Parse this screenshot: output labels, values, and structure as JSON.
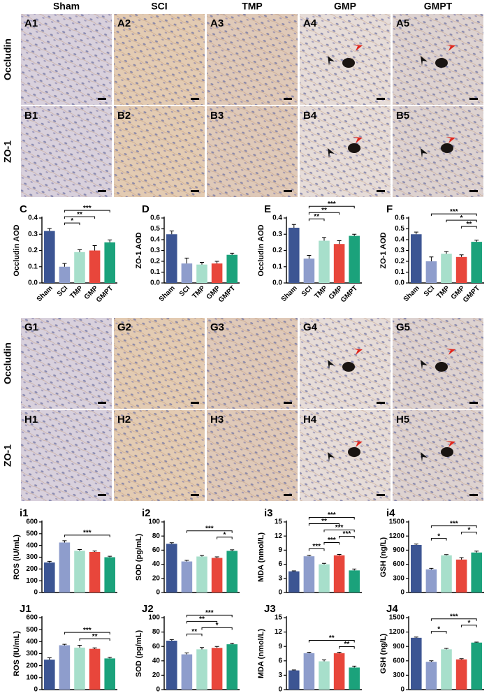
{
  "micrographs": {
    "column_headers": [
      "Sham",
      "SCI",
      "TMP",
      "GMP",
      "GMPT"
    ],
    "row_labels": [
      "Occludin",
      "ZO-1",
      "Occludin",
      "ZO-1"
    ],
    "rows": [
      [
        "A1",
        "A2",
        "A3",
        "A4",
        "A5"
      ],
      [
        "B1",
        "B2",
        "B3",
        "B4",
        "B5"
      ],
      [
        "G1",
        "G2",
        "G3",
        "G4",
        "G5"
      ],
      [
        "H1",
        "H2",
        "H3",
        "H4",
        "H5"
      ]
    ]
  },
  "chart_data": [
    {
      "type": "bar",
      "panel": "C",
      "y_label": "Occludin AOD",
      "categories": [
        "Sham",
        "SCI",
        "TMP",
        "GMP",
        "GMPT"
      ],
      "values": [
        0.32,
        0.1,
        0.19,
        0.2,
        0.25
      ],
      "errors": [
        0.015,
        0.02,
        0.015,
        0.03,
        0.015
      ],
      "colors": [
        "#3c5593",
        "#8e9dcc",
        "#a7dfcb",
        "#e8463b",
        "#1ba27b"
      ],
      "ylim": [
        0,
        0.4
      ],
      "yticks": [
        {
          "value": 0,
          "label": "0.0"
        },
        0.1,
        0.2,
        0.3,
        0.4
      ],
      "significance": [
        {
          "pair": [
            1,
            2
          ],
          "label": "*"
        },
        {
          "pair": [
            1,
            3
          ],
          "label": "**"
        },
        {
          "pair": [
            1,
            4
          ],
          "label": "***"
        }
      ]
    },
    {
      "type": "bar",
      "panel": "D",
      "y_label": "ZO-1 AOD",
      "categories": [
        "Sham",
        "SCI",
        "TMP",
        "GMP",
        "GMPT"
      ],
      "values": [
        0.45,
        0.18,
        0.17,
        0.18,
        0.26
      ],
      "errors": [
        0.03,
        0.05,
        0.02,
        0.02,
        0.015
      ],
      "colors": [
        "#3c5593",
        "#8e9dcc",
        "#a7dfcb",
        "#e8463b",
        "#1ba27b"
      ],
      "ylim": [
        0,
        0.6
      ],
      "yticks": [
        {
          "value": 0,
          "label": "0.0"
        },
        0.1,
        0.2,
        0.3,
        0.4,
        0.5,
        0.6
      ],
      "significance": []
    },
    {
      "type": "bar",
      "panel": "E",
      "y_label": "Occludin AOD",
      "categories": [
        "Sham",
        "SCI",
        "TMP",
        "GMP",
        "GMPT"
      ],
      "values": [
        0.34,
        0.15,
        0.26,
        0.24,
        0.29
      ],
      "errors": [
        0.02,
        0.02,
        0.02,
        0.02,
        0.01
      ],
      "colors": [
        "#3c5593",
        "#8e9dcc",
        "#a7dfcb",
        "#e8463b",
        "#1ba27b"
      ],
      "ylim": [
        0,
        0.4
      ],
      "yticks": [
        {
          "value": 0,
          "label": "0.0"
        },
        0.1,
        0.2,
        0.3,
        0.4
      ],
      "significance": [
        {
          "pair": [
            1,
            2
          ],
          "label": "**"
        },
        {
          "pair": [
            1,
            3
          ],
          "label": "**"
        },
        {
          "pair": [
            1,
            4
          ],
          "label": "***"
        }
      ]
    },
    {
      "type": "bar",
      "panel": "F",
      "y_label": "ZO-1 AOD",
      "categories": [
        "Sham",
        "SCI",
        "TMP",
        "GMP",
        "GMPT"
      ],
      "values": [
        0.45,
        0.2,
        0.27,
        0.24,
        0.38
      ],
      "errors": [
        0.02,
        0.04,
        0.02,
        0.02,
        0.015
      ],
      "colors": [
        "#3c5593",
        "#8e9dcc",
        "#a7dfcb",
        "#e8463b",
        "#1ba27b"
      ],
      "ylim": [
        0,
        0.6
      ],
      "yticks": [
        {
          "value": 0,
          "label": "0.0"
        },
        0.1,
        0.2,
        0.3,
        0.4,
        0.5,
        0.6
      ],
      "significance": [
        {
          "pair": [
            3,
            4
          ],
          "label": "**"
        },
        {
          "pair": [
            2,
            4
          ],
          "label": "*"
        },
        {
          "pair": [
            1,
            4
          ],
          "label": "***"
        }
      ]
    },
    {
      "type": "bar",
      "panel": "i1",
      "y_label": "ROS (IU/mL)",
      "values": [
        255,
        425,
        355,
        345,
        300
      ],
      "errors": [
        10,
        15,
        10,
        8,
        8
      ],
      "colors": [
        "#3c5593",
        "#8e9dcc",
        "#a7dfcb",
        "#e8463b",
        "#1ba27b"
      ],
      "ylim": [
        0,
        600
      ],
      "yticks": [
        0,
        100,
        200,
        300,
        400,
        500,
        600
      ],
      "significance": [
        {
          "pair": [
            1,
            4
          ],
          "label": "***"
        }
      ]
    },
    {
      "type": "bar",
      "panel": "i2",
      "y_label": "SOD (pg/mL)",
      "values": [
        69,
        44,
        51,
        49,
        59
      ],
      "errors": [
        1.5,
        1.5,
        1.5,
        1.5,
        1.5
      ],
      "colors": [
        "#3c5593",
        "#8e9dcc",
        "#a7dfcb",
        "#e8463b",
        "#1ba27b"
      ],
      "ylim": [
        0,
        100
      ],
      "yticks": [
        0,
        20,
        40,
        60,
        80,
        100
      ],
      "significance": [
        {
          "pair": [
            3,
            4
          ],
          "label": "*"
        },
        {
          "pair": [
            1,
            4
          ],
          "label": "***"
        }
      ]
    },
    {
      "type": "bar",
      "panel": "i3",
      "y_label": "MDA (nmol/L)",
      "values": [
        4.5,
        7.7,
        6.0,
        7.9,
        4.7
      ],
      "errors": [
        0.1,
        0.2,
        0.2,
        0.2,
        0.3
      ],
      "colors": [
        "#3c5593",
        "#8e9dcc",
        "#a7dfcb",
        "#e8463b",
        "#1ba27b"
      ],
      "ylim": [
        0,
        15
      ],
      "yticks": [
        0,
        3,
        6,
        9,
        12,
        15
      ],
      "significance": [
        {
          "pair": [
            1,
            2
          ],
          "label": "***"
        },
        {
          "pair": [
            2,
            3
          ],
          "label": "***"
        },
        {
          "pair": [
            3,
            4
          ],
          "label": "***"
        },
        {
          "pair": [
            2,
            4
          ],
          "label": "***"
        },
        {
          "pair": [
            1,
            3
          ],
          "label": "**"
        },
        {
          "pair": [
            1,
            4
          ],
          "label": "***"
        }
      ]
    },
    {
      "type": "bar",
      "panel": "i4",
      "y_label": "GSH (ng/L)",
      "values": [
        1010,
        490,
        790,
        700,
        850
      ],
      "errors": [
        20,
        25,
        15,
        40,
        30
      ],
      "colors": [
        "#3c5593",
        "#8e9dcc",
        "#a7dfcb",
        "#e8463b",
        "#1ba27b"
      ],
      "ylim": [
        0,
        1500
      ],
      "yticks": [
        0,
        300,
        600,
        900,
        1200,
        1500
      ],
      "significance": [
        {
          "pair": [
            1,
            2
          ],
          "label": "*"
        },
        {
          "pair": [
            3,
            4
          ],
          "label": "*"
        },
        {
          "pair": [
            1,
            4
          ],
          "label": "***"
        }
      ]
    },
    {
      "type": "bar",
      "panel": "J1",
      "y_label": "ROS (IU/mL)",
      "values": [
        250,
        370,
        350,
        340,
        260
      ],
      "errors": [
        15,
        8,
        20,
        8,
        10
      ],
      "colors": [
        "#3c5593",
        "#8e9dcc",
        "#a7dfcb",
        "#e8463b",
        "#1ba27b"
      ],
      "ylim": [
        0,
        600
      ],
      "yticks": [
        0,
        100,
        200,
        300,
        400,
        500,
        600
      ],
      "significance": [
        {
          "pair": [
            2,
            4
          ],
          "label": "**"
        },
        {
          "pair": [
            1,
            4
          ],
          "label": "***"
        }
      ]
    },
    {
      "type": "bar",
      "panel": "J2",
      "y_label": "SOD (pg/mL)",
      "values": [
        68,
        49,
        56,
        58,
        63
      ],
      "errors": [
        1.5,
        2,
        2.5,
        2,
        1.5
      ],
      "colors": [
        "#3c5593",
        "#8e9dcc",
        "#a7dfcb",
        "#e8463b",
        "#1ba27b"
      ],
      "ylim": [
        0,
        100
      ],
      "yticks": [
        0,
        20,
        40,
        60,
        80,
        100
      ],
      "significance": [
        {
          "pair": [
            1,
            2
          ],
          "label": "**"
        },
        {
          "pair": [
            2,
            4
          ],
          "label": "*"
        },
        {
          "pair": [
            1,
            3
          ],
          "label": "**"
        },
        {
          "pair": [
            1,
            4
          ],
          "label": "***"
        }
      ]
    },
    {
      "type": "bar",
      "panel": "J3",
      "y_label": "MDA (nmol/L)",
      "values": [
        4.0,
        7.6,
        5.9,
        7.6,
        4.6
      ],
      "errors": [
        0.1,
        0.2,
        0.3,
        0.2,
        0.3
      ],
      "colors": [
        "#3c5593",
        "#8e9dcc",
        "#a7dfcb",
        "#e8463b",
        "#1ba27b"
      ],
      "ylim": [
        0,
        15
      ],
      "yticks": [
        0,
        3,
        6,
        9,
        12,
        15
      ],
      "significance": [
        {
          "pair": [
            3,
            4
          ],
          "label": "**"
        },
        {
          "pair": [
            1,
            4
          ],
          "label": "**"
        }
      ]
    },
    {
      "type": "bar",
      "panel": "J4",
      "y_label": "GSH (ng/L)",
      "values": [
        1080,
        580,
        840,
        630,
        980
      ],
      "errors": [
        15,
        20,
        20,
        15,
        10
      ],
      "colors": [
        "#3c5593",
        "#8e9dcc",
        "#a7dfcb",
        "#e8463b",
        "#1ba27b"
      ],
      "ylim": [
        0,
        1500
      ],
      "yticks": [
        0,
        300,
        600,
        900,
        1200,
        1500
      ],
      "significance": [
        {
          "pair": [
            1,
            2
          ],
          "label": "*"
        },
        {
          "pair": [
            3,
            4
          ],
          "label": "*"
        },
        {
          "pair": [
            1,
            4
          ],
          "label": "***"
        }
      ]
    }
  ]
}
